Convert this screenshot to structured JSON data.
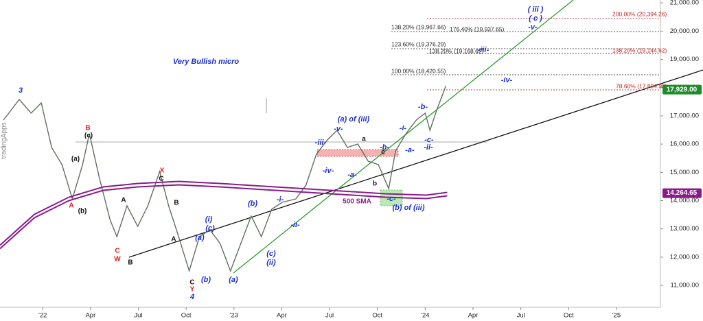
{
  "chart_data": {
    "type": "line",
    "title": "Very Bullish micro",
    "watermark": "tradingApps",
    "xlim": [
      -2.68,
      38.76
    ],
    "xticks": [
      {
        "value": 0,
        "label": "'22"
      },
      {
        "value": 3,
        "label": "Apr"
      },
      {
        "value": 6,
        "label": "Jul"
      },
      {
        "value": 9,
        "label": "Oct"
      },
      {
        "value": 12,
        "label": "'23"
      },
      {
        "value": 15,
        "label": "Apr"
      },
      {
        "value": 18,
        "label": "Jul"
      },
      {
        "value": 21,
        "label": "Oct"
      },
      {
        "value": 24,
        "label": "'24"
      },
      {
        "value": 27,
        "label": "Apr"
      },
      {
        "value": 30,
        "label": "Jul"
      },
      {
        "value": 33,
        "label": "Oct"
      },
      {
        "value": 36,
        "label": "'25"
      }
    ],
    "ylim": [
      10225,
      21100
    ],
    "yticks": [
      {
        "value": 11000,
        "label": "11,000.00"
      },
      {
        "value": 12000,
        "label": "12,000.00"
      },
      {
        "value": 13000,
        "label": "13,000.00"
      },
      {
        "value": 14000,
        "label": "14,000.00"
      },
      {
        "value": 15000,
        "label": "15,000.00"
      },
      {
        "value": 16000,
        "label": "16,000.00"
      },
      {
        "value": 17000,
        "label": "17,000.00"
      },
      {
        "value": 18000,
        "label": "18,000.00"
      },
      {
        "value": 19000,
        "label": "19,000.00"
      },
      {
        "value": 20000,
        "label": "20,000.00"
      },
      {
        "value": 21000,
        "label": "21,000.00"
      }
    ],
    "series": [
      {
        "color": "#5f6f5f",
        "x": [
          -2.46,
          -1.47,
          -0.73,
          -0.09,
          0.56,
          1.21,
          1.86,
          2.5,
          2.93,
          3.56,
          4.22,
          4.65,
          5.29,
          5.96,
          6.6,
          7.34,
          7.9,
          8.46,
          9.19,
          9.84,
          10.49,
          11.13,
          11.78,
          12.43,
          13.08,
          13.72,
          14.37,
          15.02,
          15.88,
          16.52,
          17.17,
          17.82,
          18.47,
          19.12,
          19.77,
          20.42,
          21.06,
          21.71,
          22.14,
          22.79,
          23.44,
          24.0,
          24.3,
          24.73,
          25.3
        ],
        "values": [
          16851,
          17580,
          17094,
          17458,
          15880,
          15274,
          14060,
          15274,
          16366,
          14788,
          13332,
          12725,
          13817,
          13089,
          13817,
          15031,
          13817,
          12847,
          11512,
          12725,
          12968,
          12483,
          11512,
          12483,
          13453,
          12725,
          13696,
          13939,
          14060,
          14545,
          15638,
          16123,
          16487,
          15880,
          16002,
          15395,
          15274,
          14424,
          15759,
          16366,
          16851,
          17094,
          16487,
          17215,
          18064
        ]
      },
      {
        "name": "500 SMA",
        "color": "#8b1a8b",
        "x": [
          -2.68,
          -0.52,
          1.64,
          3.8,
          5.96,
          8.55,
          11.14,
          14.59,
          18.04,
          21.49,
          24.08,
          25.38
        ],
        "values": [
          12361,
          13453,
          14060,
          14424,
          14545,
          14618,
          14545,
          14424,
          14303,
          14181,
          14133,
          14230
        ]
      }
    ],
    "price_tags": [
      {
        "value": 17929,
        "label": "17,929.00",
        "color": "#1e8c2a"
      },
      {
        "value": 14264.65,
        "label": "14,264.65",
        "color": "#8b1a8b"
      }
    ],
    "fib_levels": [
      "200.00% (20,394.26)",
      "138.20% (19,967.66)",
      "176.40% (19,937.65)",
      "123.60% (19,376.29)",
      "138.20% (19,168.62)",
      "138.20% (19,144.62)",
      "100.00% (18,420.55)",
      "78.60% (17,894.98)"
    ],
    "wave_labels": [
      "3",
      "B",
      "(c)",
      "(a)",
      "A",
      "(b)",
      "X",
      "C",
      "A",
      "B",
      "A",
      "C",
      "W",
      "B",
      "(i)",
      "(c)",
      "(a)",
      "(b)",
      "C",
      "Y",
      "4",
      "(b)",
      "(a)",
      "(c)",
      "(ii)",
      "-i-",
      "-ii-",
      "-iii-",
      "-iv-",
      "(a) of (iii)",
      "-v-",
      "a",
      "-b-",
      "c",
      "-a-",
      "b",
      "-c-",
      "(b) of (iii)",
      "-i-",
      "-b-",
      "-a-",
      "-c-",
      "-ii-",
      "-iii-",
      "-iv-",
      "( iii )",
      "( c )",
      "-v-"
    ]
  }
}
